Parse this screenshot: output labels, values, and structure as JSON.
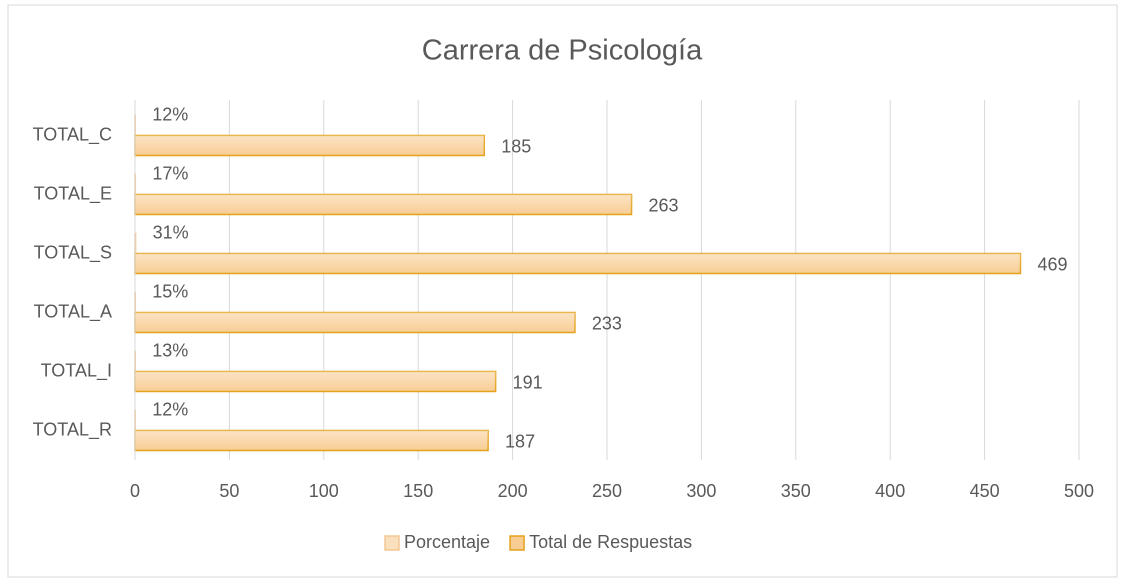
{
  "chart_data": {
    "type": "bar",
    "orientation": "horizontal",
    "title": "Carrera de Psicología",
    "categories": [
      "TOTAL_C",
      "TOTAL_E",
      "TOTAL_S",
      "TOTAL_A",
      "TOTAL_I",
      "TOTAL_R"
    ],
    "series": [
      {
        "name": "Porcentaje",
        "color": "#fbe0bd",
        "border_color": "#f3c795",
        "values": [
          0.12,
          0.17,
          0.31,
          0.15,
          0.13,
          0.12
        ],
        "value_labels": [
          "12%",
          "17%",
          "31%",
          "15%",
          "13%",
          "12%"
        ]
      },
      {
        "name": "Total de Respuestas",
        "color": "#f8cd94",
        "border_color": "#e3a21a",
        "values": [
          185,
          263,
          469,
          233,
          191,
          187
        ]
      }
    ],
    "xlim": [
      0,
      500
    ],
    "xticks": [
      0,
      50,
      100,
      150,
      200,
      250,
      300,
      350,
      400,
      450,
      500
    ],
    "grid": true,
    "legend": "bottom"
  }
}
